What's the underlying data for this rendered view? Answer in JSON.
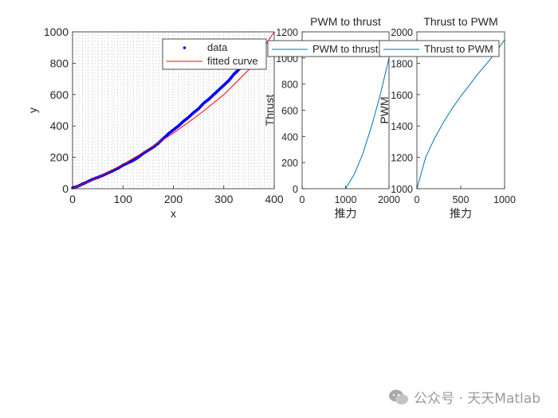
{
  "chart_data": [
    {
      "type": "scatter",
      "title": "",
      "xlabel": "x",
      "ylabel": "y",
      "xlim": [
        0,
        400
      ],
      "ylim": [
        0,
        1000
      ],
      "xticks": [
        "0",
        "100",
        "200",
        "300",
        "400"
      ],
      "yticks": [
        "0",
        "200",
        "400",
        "600",
        "800",
        "1000"
      ],
      "grid": "dotted",
      "legend_position": "top-right",
      "series": [
        {
          "name": "data",
          "kind": "points",
          "color": "#0000ff",
          "x": [
            0,
            10,
            20,
            30,
            40,
            50,
            60,
            70,
            80,
            90,
            100,
            110,
            120,
            130,
            140,
            150,
            160,
            170,
            180,
            190,
            200,
            210,
            220,
            230,
            240,
            250,
            260,
            270,
            280,
            290,
            300,
            310,
            320,
            330,
            340,
            350,
            360
          ],
          "y": [
            5,
            15,
            30,
            45,
            60,
            72,
            85,
            100,
            115,
            130,
            150,
            165,
            180,
            200,
            225,
            245,
            265,
            290,
            320,
            350,
            375,
            400,
            430,
            455,
            485,
            510,
            545,
            570,
            600,
            630,
            660,
            690,
            730,
            760,
            790,
            820,
            850
          ]
        },
        {
          "name": "fitted curve",
          "kind": "line",
          "color": "#ff0000",
          "x": [
            0,
            50,
            100,
            150,
            200,
            250,
            300,
            350,
            400
          ],
          "y": [
            0,
            72,
            155,
            250,
            355,
            470,
            600,
            760,
            1000
          ]
        }
      ]
    },
    {
      "type": "line",
      "title": "PWM to thrust",
      "xlabel": "推力",
      "ylabel": "Thrust",
      "xlim": [
        0,
        2000
      ],
      "ylim": [
        0,
        1200
      ],
      "xticks": [
        "0",
        "1000",
        "2000"
      ],
      "yticks": [
        "0",
        "200",
        "400",
        "600",
        "800",
        "1000",
        "1200"
      ],
      "legend_position": "top",
      "series": [
        {
          "name": "PWM to thrust",
          "color": "#0072bd",
          "x": [
            1000,
            1200,
            1400,
            1600,
            1800,
            2000
          ],
          "y": [
            0,
            110,
            270,
            480,
            720,
            1000
          ]
        }
      ]
    },
    {
      "type": "line",
      "title": "Thrust to PWM",
      "xlabel": "推力",
      "ylabel": "PWM",
      "xlim": [
        0,
        1000
      ],
      "ylim": [
        1000,
        2000
      ],
      "xticks": [
        "0",
        "500",
        "1000"
      ],
      "yticks": [
        "1000",
        "1200",
        "1400",
        "1600",
        "1800",
        "2000"
      ],
      "legend_position": "top",
      "series": [
        {
          "name": "Thrust to PWM",
          "color": "#0072bd",
          "x": [
            0,
            100,
            200,
            300,
            400,
            500,
            600,
            700,
            800,
            900,
            1000
          ],
          "y": [
            1000,
            1200,
            1320,
            1420,
            1510,
            1590,
            1660,
            1735,
            1800,
            1870,
            1950
          ]
        }
      ]
    }
  ],
  "watermark": {
    "text": "公众号 · 天天Matlab",
    "icon": "wechat-icon"
  }
}
